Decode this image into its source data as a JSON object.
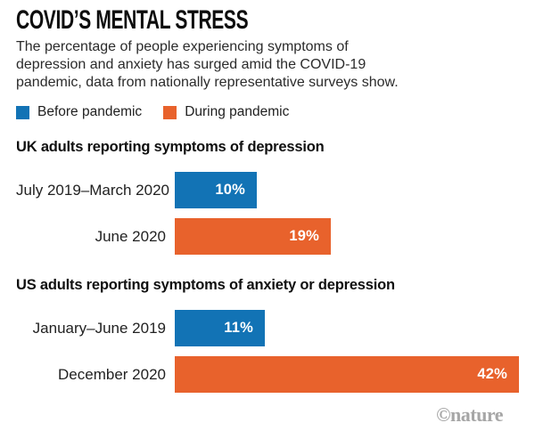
{
  "header": {
    "title": "COVID’S MENTAL STRESS",
    "subtitle_lines": [
      "The percentage of people experiencing symptoms of",
      "depression and anxiety has surged amid the COVID-19",
      "pandemic, data from nationally representative surveys show."
    ]
  },
  "legend": {
    "items": [
      {
        "label": "Before pandemic",
        "color": "#1273b5"
      },
      {
        "label": "During pandemic",
        "color": "#e8622c"
      }
    ]
  },
  "colors": {
    "before_pandemic_blue": "#1273b5",
    "during_pandemic_orange": "#e8622c",
    "bar_value_text": "#ffffff",
    "credit_gray": "#a6a6a6",
    "title_black": "#0d0d0d"
  },
  "chart_data": [
    {
      "type": "bar",
      "title": "UK adults reporting symptoms of depression",
      "categories": [
        "July 2019–March 2020",
        "June 2020"
      ],
      "values": [
        10,
        19
      ],
      "value_labels": [
        "10%",
        "19%"
      ],
      "bar_legend": [
        "Before pandemic",
        "During pandemic"
      ],
      "bar_colors": [
        "#1273b5",
        "#e8622c"
      ],
      "unit": "%",
      "xlim": [
        0,
        42
      ],
      "orientation": "horizontal",
      "grid": false,
      "value_label_position": "inside-right"
    },
    {
      "type": "bar",
      "title": "US adults reporting symptoms of anxiety or depression",
      "categories": [
        "January–June 2019",
        "December 2020"
      ],
      "values": [
        11,
        42
      ],
      "value_labels": [
        "11%",
        "42%"
      ],
      "bar_legend": [
        "Before pandemic",
        "During pandemic"
      ],
      "bar_colors": [
        "#1273b5",
        "#e8622c"
      ],
      "unit": "%",
      "xlim": [
        0,
        42
      ],
      "orientation": "horizontal",
      "grid": false,
      "value_label_position": "inside-right"
    }
  ],
  "footer": {
    "credit": "©nature"
  }
}
